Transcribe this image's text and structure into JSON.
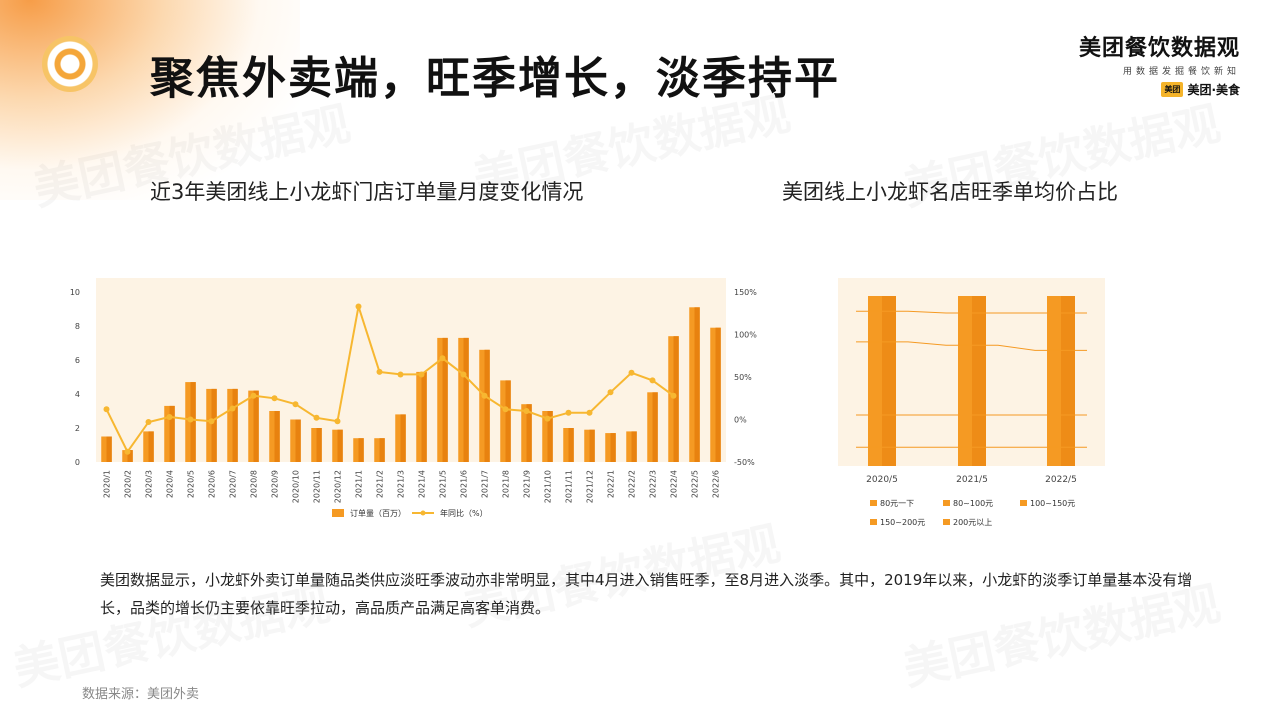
{
  "page": {
    "title": "聚焦外卖端，旺季增长，淡季持平",
    "brand_name": "美团餐饮数据观",
    "brand_sub": "用数据发掘餐饮新知",
    "brand_mark": "美团·美食",
    "brand_badge": "美团",
    "watermark": "美团餐饮数据观",
    "summary": "美团数据显示，小龙虾外卖订单量随品类供应淡旺季波动亦非常明显，其中4月进入销售旺季，至8月进入淡季。其中，2019年以来，小龙虾的淡季订单量基本没有增长，品类的增长仍主要依靠旺季拉动，高品质产品满足高客单消费。",
    "source": "数据来源：美团外卖"
  },
  "colors": {
    "bar": "#f59a23",
    "bar_dark": "#e8820f",
    "line": "#f7b731",
    "plot_bg": "#fdf3e4"
  },
  "chart_data": [
    {
      "type": "bar",
      "title": "近3年美团线上小龙虾门店订单量月度变化情况",
      "categories": [
        "2020/1",
        "2020/2",
        "2020/3",
        "2020/4",
        "2020/5",
        "2020/6",
        "2020/7",
        "2020/8",
        "2020/9",
        "2020/10",
        "2020/11",
        "2020/12",
        "2021/1",
        "2021/2",
        "2021/3",
        "2021/4",
        "2021/5",
        "2021/6",
        "2021/7",
        "2021/8",
        "2021/9",
        "2021/10",
        "2021/11",
        "2021/12",
        "2022/1",
        "2022/2",
        "2022/3",
        "2022/4",
        "2022/5",
        "2022/6"
      ],
      "series": [
        {
          "name": "订单量（百万）",
          "type": "bar",
          "axis": "left",
          "values": [
            1.5,
            0.7,
            1.8,
            3.3,
            4.7,
            4.3,
            4.3,
            4.2,
            3.0,
            2.5,
            2.0,
            1.9,
            1.4,
            1.4,
            2.8,
            5.3,
            7.3,
            7.3,
            6.6,
            4.8,
            3.4,
            3.0,
            2.0,
            1.9,
            1.7,
            1.8,
            4.1,
            7.4,
            9.1,
            7.9
          ]
        },
        {
          "name": "年同比（%）",
          "type": "line",
          "axis": "right",
          "values": [
            12,
            -38,
            -3,
            3,
            0,
            -2,
            13,
            28,
            25,
            18,
            2,
            -2,
            133,
            56,
            53,
            53,
            72,
            53,
            28,
            12,
            10,
            1,
            8,
            8,
            32,
            55,
            46,
            28,
            null,
            null
          ]
        }
      ],
      "y_left": {
        "min": 0,
        "max": 10,
        "ticks": [
          "0",
          "2",
          "4",
          "6",
          "8",
          "10"
        ]
      },
      "y_right": {
        "min": -50,
        "max": 150,
        "ticks": [
          "-50%",
          "0%",
          "50%",
          "100%",
          "150%"
        ]
      },
      "legend": [
        "订单量（百万）",
        "年同比（%）"
      ],
      "legend_position": "bottom"
    },
    {
      "type": "bar",
      "title": "美团线上小龙虾名店旺季单均价占比",
      "categories": [
        "2020/5",
        "2021/5",
        "2022/5"
      ],
      "stacked": true,
      "series": [
        {
          "name": "80元一下",
          "values": [
            0.11,
            0.11,
            0.11
          ]
        },
        {
          "name": "80~100元",
          "values": [
            0.19,
            0.19,
            0.19
          ]
        },
        {
          "name": "100~150元",
          "values": [
            0.43,
            0.41,
            0.38
          ]
        },
        {
          "name": "150~200元",
          "values": [
            0.18,
            0.19,
            0.22
          ]
        },
        {
          "name": "200元以上",
          "values": [
            0.09,
            0.1,
            0.1
          ]
        }
      ],
      "legend": [
        "80元一下",
        "80~100元",
        "100~150元",
        "150~200元",
        "200元以上"
      ],
      "legend_position": "bottom"
    }
  ]
}
